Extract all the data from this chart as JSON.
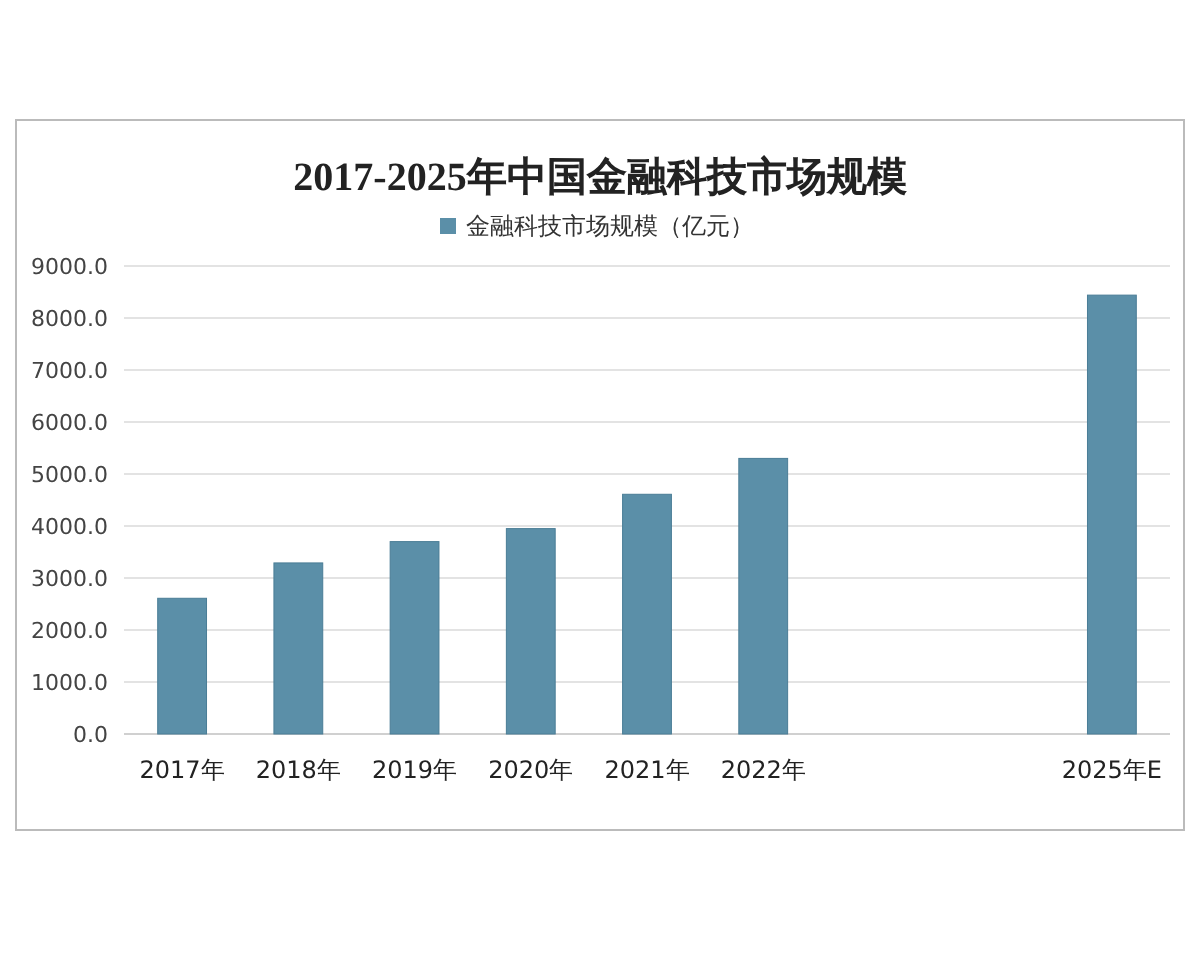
{
  "chart_data": {
    "type": "bar",
    "title": "2017-2025年中国金融科技市场规模",
    "categories": [
      "2017年",
      "2018年",
      "2019年",
      "2020年",
      "2021年",
      "2022年",
      null,
      null,
      "2025年E"
    ],
    "series": [
      {
        "name": "金融科技市场规模（亿元）",
        "color": "#5b8fa8",
        "values": [
          2610,
          3290,
          3700,
          3950,
          4610,
          5300,
          null,
          null,
          8440
        ]
      }
    ],
    "ylim": [
      0,
      9000
    ],
    "yticks": [
      {
        "value": 0,
        "label": "0.0"
      },
      {
        "value": 1000,
        "label": "1000.0"
      },
      {
        "value": 2000,
        "label": "2000.0"
      },
      {
        "value": 3000,
        "label": "3000.0"
      },
      {
        "value": 4000,
        "label": "4000.0"
      },
      {
        "value": 5000,
        "label": "5000.0"
      },
      {
        "value": 6000,
        "label": "6000.0"
      },
      {
        "value": 7000,
        "label": "7000.0"
      },
      {
        "value": 8000,
        "label": "8000.0"
      },
      {
        "value": 9000,
        "label": "9000.0"
      }
    ],
    "grid": "y",
    "legend": "top"
  }
}
